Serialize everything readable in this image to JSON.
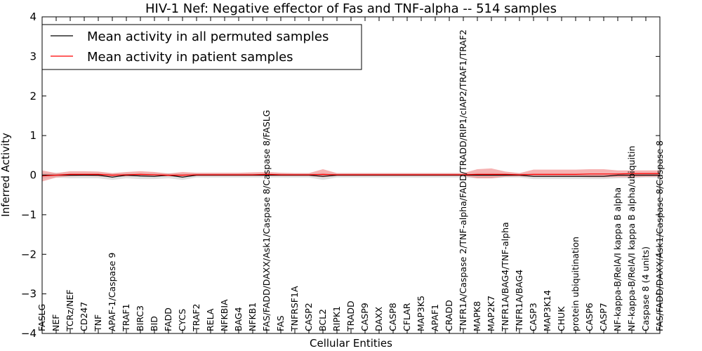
{
  "chart_data": {
    "type": "line",
    "title": "HIV-1 Nef: Negative effector of Fas and TNF-alpha -- 514 samples",
    "xlabel": "Cellular Entities",
    "ylabel": "Inferred Activity",
    "ylim": [
      -4,
      4
    ],
    "yticks": [
      -4,
      -3,
      -2,
      -1,
      0,
      1,
      2,
      3,
      4
    ],
    "ytick_labels": [
      "−4",
      "−3",
      "−2",
      "−1",
      "0",
      "1",
      "2",
      "3",
      "4"
    ],
    "grid": false,
    "legend_position": "top-left",
    "categories": [
      "FASLG",
      "NEF",
      "TCRz/NEF",
      "CD247",
      "TNF",
      "APAF-1/Caspase 9",
      "TRAF1",
      "BIRC3",
      "BID",
      "FADD",
      "CYCS",
      "TRAF2",
      "RELA",
      "NFKBIA",
      "BAG4",
      "NFKB1",
      "FAS/FADD/DAXX/Ask1/Caspase 8/Caspase 8/FASLG",
      "FAS",
      "TNFRSF1A",
      "CASP2",
      "BCL2",
      "RIPK1",
      "TRADD",
      "CASP9",
      "DAXX",
      "CASP8",
      "CFLAR",
      "MAP3K5",
      "APAF1",
      "CRADD",
      "TNFR1A/Caspase 2/TNF-alpha/FADD/TRADD/RIP1/cIAP2/TRAF1/TRAF2",
      "MAPK8",
      "MAP2K7",
      "TNFR1A/BAG4/TNF-alpha",
      "TNFR1A/BAG4",
      "CASP3",
      "MAP3K14",
      "CHUK",
      "protein ubiquitination",
      "CASP6",
      "CASP7",
      "NF-kappa-B/RelA/I kappa B alpha",
      "NF-kappa-B/RelA/I kappa B alpha/ubiquitin",
      "Caspase 8 (4 units)",
      "FAS/FADD/DAXX/Ask1/Caspase 8/Caspase 8"
    ],
    "series": [
      {
        "name": "Mean activity in all permuted samples",
        "color": "#000000",
        "values": [
          0.0,
          0.0,
          0.0,
          0.0,
          0.0,
          -0.05,
          0.0,
          -0.02,
          -0.03,
          0.0,
          -0.05,
          0.0,
          0.0,
          0.0,
          0.0,
          0.0,
          0.0,
          0.0,
          0.0,
          0.0,
          -0.03,
          0.0,
          0.0,
          0.0,
          0.0,
          0.0,
          0.0,
          0.0,
          0.0,
          0.0,
          0.0,
          0.0,
          0.0,
          0.0,
          0.0,
          -0.03,
          -0.03,
          -0.03,
          -0.03,
          -0.03,
          -0.03,
          0.0,
          0.0,
          0.0,
          0.0
        ],
        "band_low": [
          -0.08,
          -0.06,
          -0.08,
          -0.08,
          -0.08,
          -0.12,
          -0.08,
          -0.1,
          -0.1,
          -0.08,
          -0.12,
          -0.06,
          -0.06,
          -0.06,
          -0.06,
          -0.06,
          -0.06,
          -0.06,
          -0.06,
          -0.06,
          -0.12,
          -0.06,
          -0.06,
          -0.06,
          -0.06,
          -0.06,
          -0.06,
          -0.06,
          -0.06,
          -0.06,
          -0.06,
          -0.08,
          -0.08,
          -0.06,
          -0.06,
          -0.1,
          -0.1,
          -0.1,
          -0.1,
          -0.1,
          -0.1,
          -0.08,
          -0.08,
          -0.06,
          -0.06
        ],
        "band_high": [
          0.06,
          0.06,
          0.06,
          0.06,
          0.06,
          0.04,
          0.05,
          0.05,
          0.05,
          0.05,
          0.04,
          0.05,
          0.05,
          0.05,
          0.05,
          0.05,
          0.05,
          0.05,
          0.05,
          0.05,
          0.05,
          0.05,
          0.05,
          0.05,
          0.05,
          0.05,
          0.05,
          0.05,
          0.05,
          0.05,
          0.05,
          0.06,
          0.06,
          0.05,
          0.05,
          0.04,
          0.04,
          0.04,
          0.04,
          0.04,
          0.04,
          0.05,
          0.05,
          0.05,
          0.05
        ],
        "band_color": "#c8c8c8"
      },
      {
        "name": "Mean activity in patient samples",
        "color": "#ff0000",
        "values": [
          -0.02,
          0.0,
          0.02,
          0.02,
          0.02,
          0.0,
          0.01,
          0.02,
          0.01,
          0.0,
          0.0,
          0.01,
          0.01,
          0.01,
          0.01,
          0.01,
          0.02,
          0.01,
          0.01,
          0.01,
          0.02,
          0.01,
          0.01,
          0.01,
          0.01,
          0.01,
          0.01,
          0.01,
          0.01,
          0.01,
          0.01,
          0.02,
          0.02,
          0.02,
          0.01,
          0.02,
          0.02,
          0.02,
          0.02,
          0.03,
          0.03,
          0.03,
          0.04,
          0.04,
          0.04
        ],
        "band_low": [
          -0.16,
          -0.06,
          -0.03,
          -0.02,
          -0.03,
          -0.04,
          -0.03,
          -0.02,
          -0.02,
          -0.03,
          -0.04,
          -0.02,
          -0.02,
          -0.02,
          -0.02,
          -0.02,
          -0.02,
          -0.02,
          -0.02,
          -0.02,
          -0.05,
          -0.02,
          -0.02,
          -0.02,
          -0.02,
          -0.02,
          -0.02,
          -0.02,
          -0.02,
          -0.02,
          -0.02,
          -0.08,
          -0.08,
          -0.04,
          -0.03,
          -0.04,
          -0.04,
          -0.04,
          -0.04,
          -0.05,
          -0.05,
          -0.05,
          -0.05,
          -0.04,
          -0.04
        ],
        "band_high": [
          0.12,
          0.05,
          0.1,
          0.1,
          0.09,
          0.05,
          0.08,
          0.1,
          0.08,
          0.04,
          0.08,
          0.06,
          0.06,
          0.06,
          0.06,
          0.07,
          0.08,
          0.06,
          0.05,
          0.05,
          0.15,
          0.05,
          0.05,
          0.05,
          0.05,
          0.05,
          0.05,
          0.05,
          0.05,
          0.05,
          0.05,
          0.15,
          0.17,
          0.09,
          0.05,
          0.14,
          0.14,
          0.14,
          0.14,
          0.15,
          0.15,
          0.12,
          0.12,
          0.12,
          0.12
        ],
        "band_color": "#f08080"
      }
    ]
  }
}
